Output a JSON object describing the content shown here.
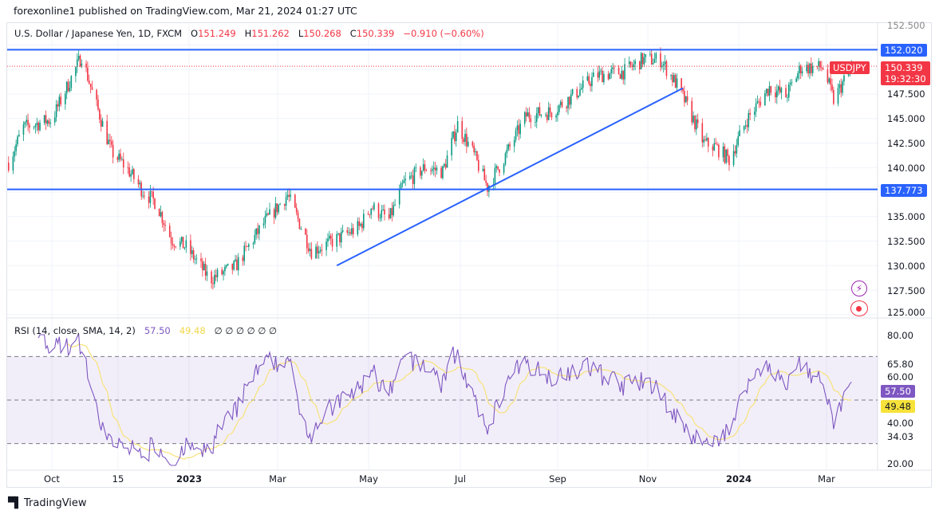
{
  "header": {
    "published": "forexonline1 published on TradingView.com, Mar 21, 2024 01:27 UTC"
  },
  "legend": {
    "symbol": "U.S. Dollar / Japanese Yen, 1D, FXCM",
    "o_label": "O",
    "o": "151.249",
    "h_label": "H",
    "h": "151.262",
    "l_label": "L",
    "l": "150.268",
    "c_label": "C",
    "c": "150.339",
    "change": "−0.910 (−0.60%)"
  },
  "rsi_legend": {
    "title": "RSI (14, close, SMA, 14, 2)",
    "rsi": "57.50",
    "sma": "49.48",
    "empty": "∅ ∅ ∅ ∅ ∅ ∅"
  },
  "price_axis": {
    "labels": [
      "152.500",
      "147.500",
      "145.000",
      "142.500",
      "140.000",
      "135.000",
      "132.500",
      "130.000",
      "127.500",
      "125.000"
    ],
    "line_top": "152.020",
    "line_bottom": "137.773",
    "last_price": "150.339",
    "countdown": "19:32:30",
    "symbol_tag": "USDJPY"
  },
  "rsi_axis": {
    "labels": [
      "80.00",
      "65.80",
      "60.00",
      "40.00",
      "34.03",
      "20.00"
    ],
    "rsi_badge": "57.50",
    "sma_badge": "49.48"
  },
  "time_axis": [
    "Oct",
    "15",
    "2023",
    "Mar",
    "May",
    "Jul",
    "Sep",
    "Nov",
    "2024",
    "Mar"
  ],
  "footer": {
    "brand": "TradingView"
  },
  "colors": {
    "up": "#089981",
    "down": "#f23645",
    "lines": "#2962ff",
    "rsi": "#7e57c2",
    "rsi_sma": "#f7e27a",
    "badge_blue": "#2962ff",
    "badge_red": "#f23645"
  },
  "icons": [
    "lightning-icon",
    "record-icon",
    "tradingview-logo"
  ],
  "chart_data": {
    "type": "candlestick",
    "symbol": "USDJPY",
    "interval": "1D",
    "ylim": [
      125,
      152.5
    ],
    "horizontal_lines": [
      152.02,
      137.773
    ],
    "trendline": [
      [
        "2023-04-10",
        130.0
      ],
      [
        "2023-11-28",
        148.1
      ]
    ],
    "last_close": 150.339,
    "approx_closes": [
      [
        "2022-09-02",
        140.5
      ],
      [
        "2022-09-12",
        144.1
      ],
      [
        "2022-10-01",
        144.9
      ],
      [
        "2022-10-21",
        151.4
      ],
      [
        "2022-10-28",
        147.7
      ],
      [
        "2022-11-10",
        141.6
      ],
      [
        "2022-11-20",
        140.0
      ],
      [
        "2022-12-01",
        137.6
      ],
      [
        "2022-12-10",
        136.4
      ],
      [
        "2022-12-20",
        132.7
      ],
      [
        "2022-12-30",
        131.9
      ],
      [
        "2023-01-15",
        128.6
      ],
      [
        "2023-02-01",
        129.9
      ],
      [
        "2023-02-20",
        134.3
      ],
      [
        "2023-03-08",
        137.2
      ],
      [
        "2023-03-24",
        131.5
      ],
      [
        "2023-04-05",
        132.3
      ],
      [
        "2023-04-25",
        133.9
      ],
      [
        "2023-05-03",
        136.0
      ],
      [
        "2023-05-15",
        134.7
      ],
      [
        "2023-05-25",
        138.4
      ],
      [
        "2023-06-08",
        140.0
      ],
      [
        "2023-06-20",
        139.6
      ],
      [
        "2023-06-30",
        144.4
      ],
      [
        "2023-07-10",
        141.6
      ],
      [
        "2023-07-20",
        138.0
      ],
      [
        "2023-08-01",
        141.2
      ],
      [
        "2023-08-15",
        145.3
      ],
      [
        "2023-09-01",
        145.7
      ],
      [
        "2023-09-15",
        147.3
      ],
      [
        "2023-10-01",
        149.4
      ],
      [
        "2023-10-20",
        149.8
      ],
      [
        "2023-11-01",
        151.0
      ],
      [
        "2023-11-13",
        151.0
      ],
      [
        "2023-11-25",
        148.2
      ],
      [
        "2023-12-05",
        144.9
      ],
      [
        "2023-12-12",
        142.5
      ],
      [
        "2023-12-20",
        142.1
      ],
      [
        "2023-12-29",
        140.8
      ],
      [
        "2024-01-10",
        144.9
      ],
      [
        "2024-01-25",
        148.2
      ],
      [
        "2024-02-05",
        147.3
      ],
      [
        "2024-02-15",
        150.2
      ],
      [
        "2024-03-01",
        150.2
      ],
      [
        "2024-03-08",
        146.9
      ],
      [
        "2024-03-14",
        148.6
      ],
      [
        "2024-03-20",
        150.339
      ]
    ],
    "rsi": {
      "length": 14,
      "source": "close",
      "ma": "SMA",
      "ma_length": 14,
      "levels": [
        70,
        50,
        30
      ],
      "ylim": [
        20,
        80
      ]
    }
  }
}
